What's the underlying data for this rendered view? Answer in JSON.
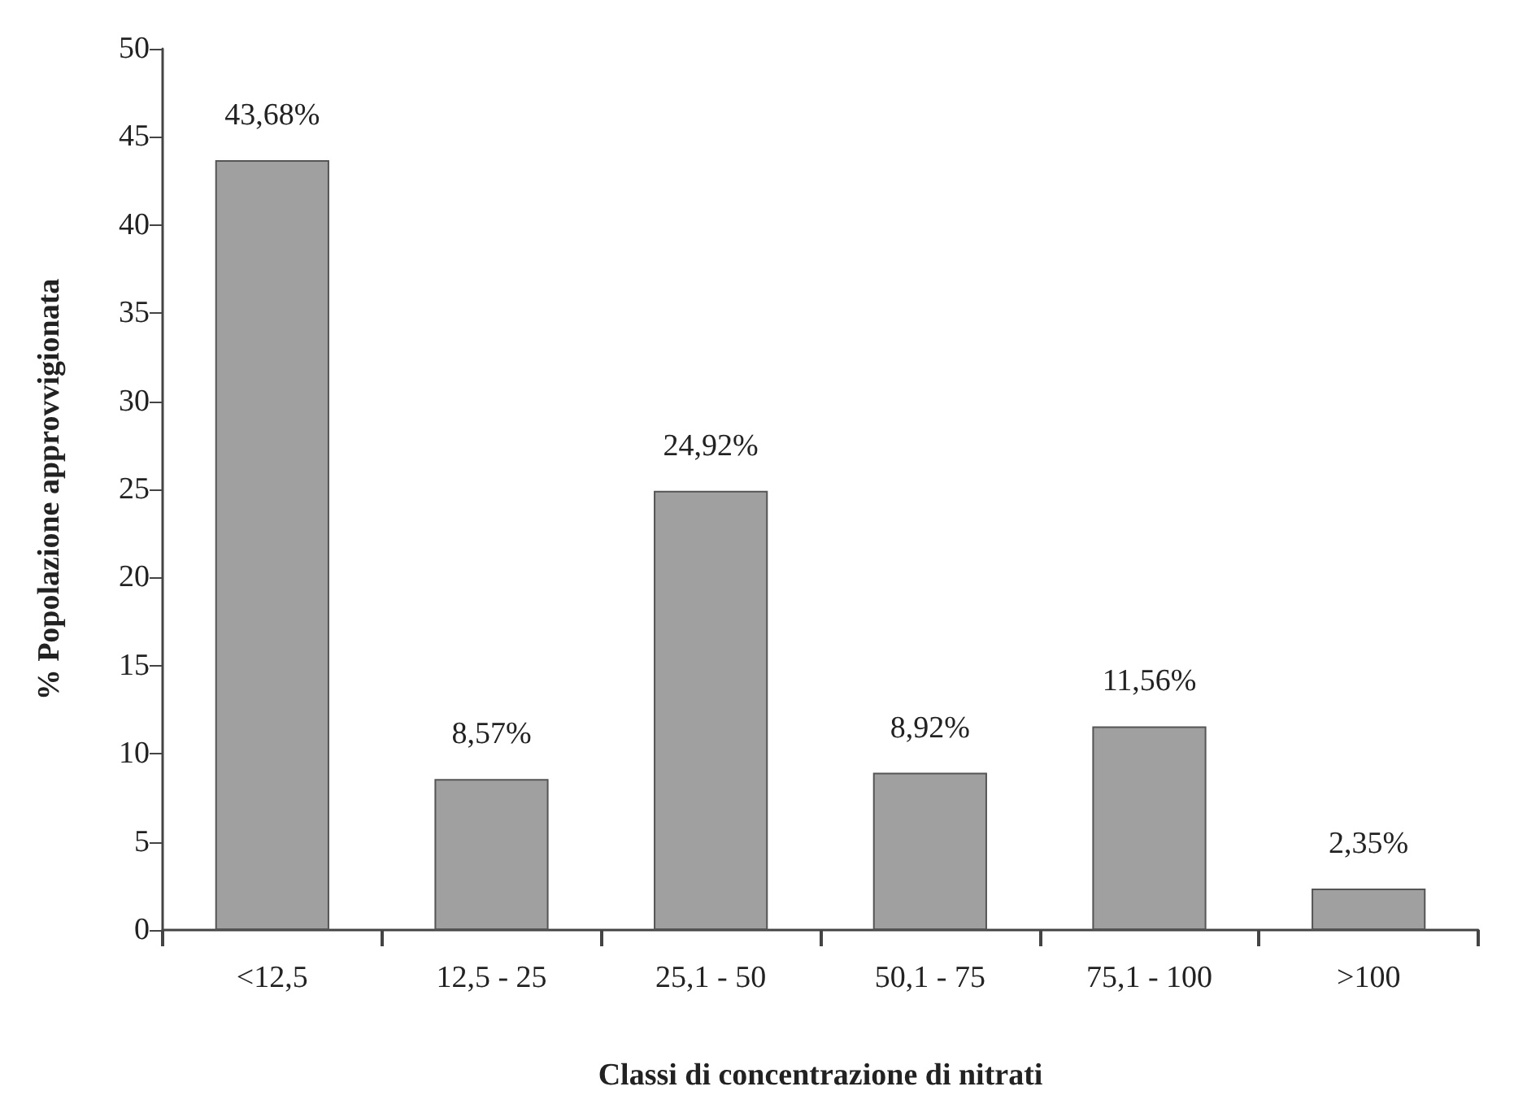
{
  "chart_data": {
    "type": "bar",
    "xlabel": "Classi di concentrazione di nitrati",
    "ylabel": "% Popolazione approvvigionata",
    "categories": [
      "<12,5",
      "12,5 - 25",
      "25,1 - 50",
      "50,1 - 75",
      "75,1 - 100",
      ">100"
    ],
    "values": [
      43.68,
      8.57,
      24.92,
      8.92,
      11.56,
      2.35
    ],
    "value_labels": [
      "43,68%",
      "8,57%",
      "24,92%",
      "8,92%",
      "11,56%",
      "2,35%"
    ],
    "color": "#a0a0a0",
    "ylim": [
      0,
      50
    ],
    "yticks": [
      0,
      5,
      10,
      15,
      20,
      25,
      30,
      35,
      40,
      45,
      50
    ],
    "grid": false
  }
}
